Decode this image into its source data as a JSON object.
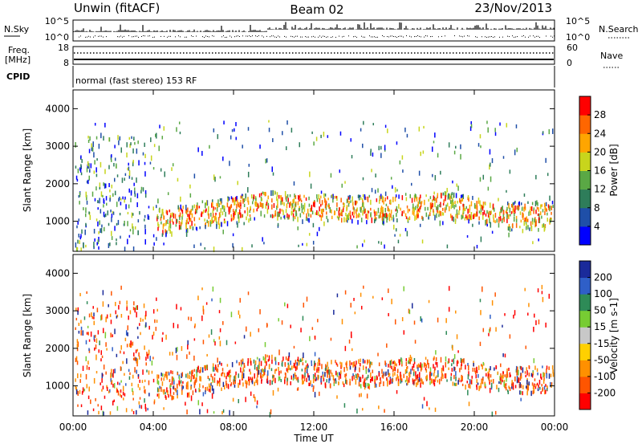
{
  "header": {
    "station": "Unwin (fitACF)",
    "beam": "Beam 02",
    "date": "23/Nov/2013"
  },
  "sky_panel": {
    "left_label": "N.Sky",
    "right_label": "N.Search",
    "left_top": "10^5",
    "left_bottom": "10^0",
    "right_top": "10^5",
    "right_bottom": "10^0"
  },
  "freq_panel": {
    "label_line1": "Freq.",
    "label_line2": "[MHz]",
    "left_top": "18",
    "left_bottom": "8",
    "right_label": "Nave",
    "right_top": "60",
    "right_bottom": "0"
  },
  "cpid": {
    "label": "CPID",
    "text": "normal (fast stereo) 153 RF"
  },
  "chart_data": [
    {
      "type": "heatmap",
      "ylabel": "Slant Range [km]",
      "ylim": [
        200,
        4500
      ],
      "yticks": [
        "1000",
        "2000",
        "3000",
        "4000"
      ],
      "colorbar": {
        "label": "Power [dB]",
        "ticks": [
          "4",
          "8",
          "12",
          "16",
          "20",
          "24",
          "28"
        ],
        "colors": [
          "#0000ff",
          "#1f4fa8",
          "#2e7d5a",
          "#5aa845",
          "#c8d51c",
          "#ffa500",
          "#ff6600",
          "#ff0000"
        ]
      }
    },
    {
      "type": "heatmap",
      "ylabel": "Slant Range [km]",
      "ylim": [
        200,
        4500
      ],
      "yticks": [
        "1000",
        "2000",
        "3000",
        "4000"
      ],
      "colorbar": {
        "label": "Velocity [m s-1]",
        "ticks": [
          "200",
          "100",
          "50",
          "15",
          "-15",
          "-50",
          "-100",
          "-200"
        ],
        "colors": [
          "#1a2a9a",
          "#2f5fc8",
          "#2e8b57",
          "#77cc33",
          "#c8c8c8",
          "#ffd000",
          "#ff9000",
          "#ff5500",
          "#ff0000"
        ]
      }
    }
  ],
  "xaxis": {
    "label": "Time UT",
    "ticks": [
      "00:00",
      "04:00",
      "08:00",
      "12:00",
      "16:00",
      "20:00",
      "00:00"
    ]
  }
}
